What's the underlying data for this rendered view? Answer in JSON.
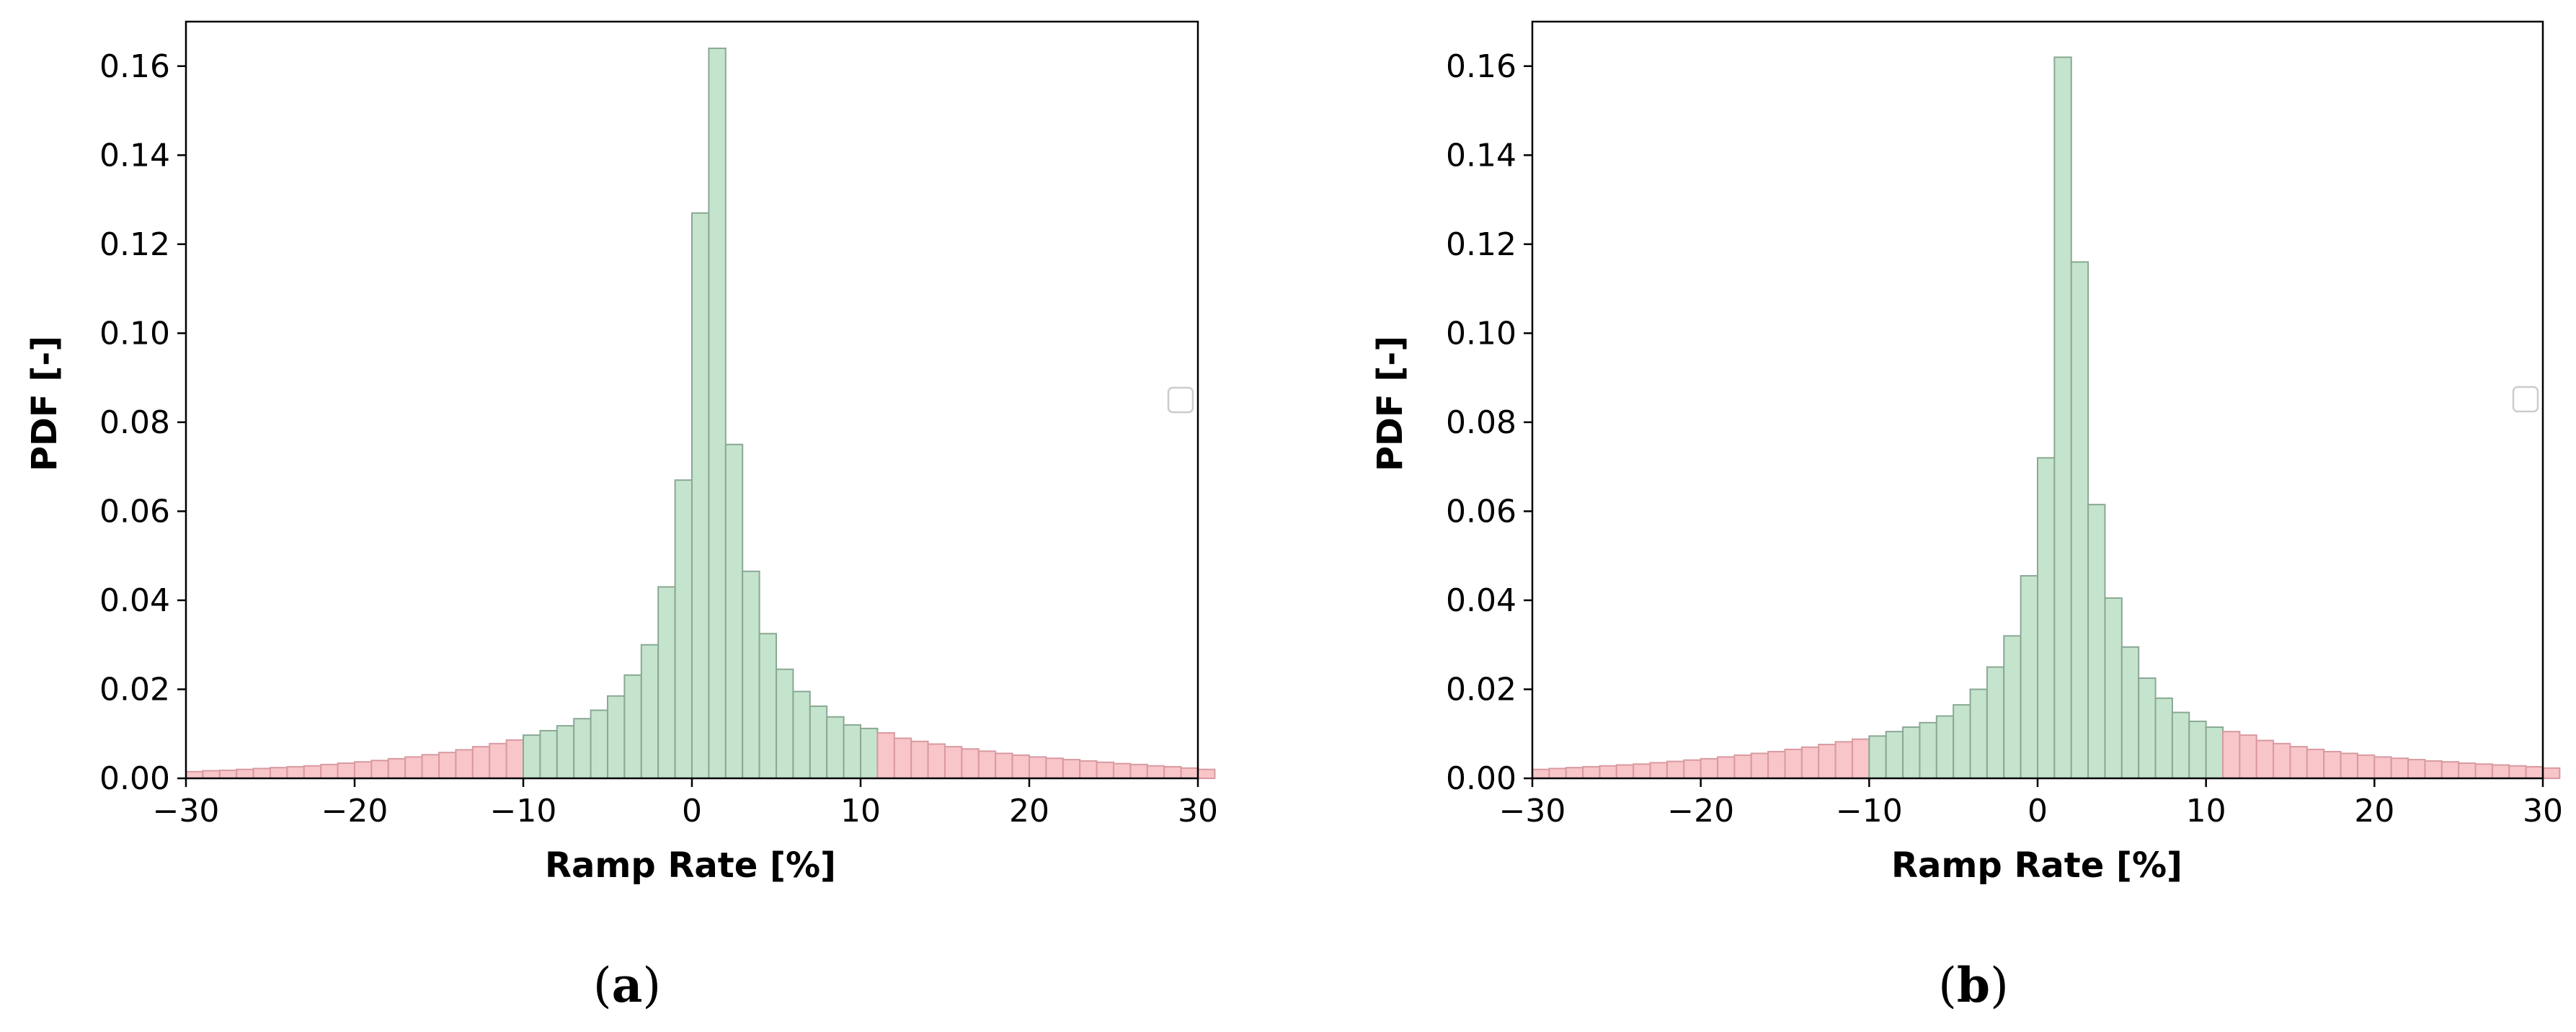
{
  "chart_data": [
    {
      "type": "bar",
      "panel_label": "a",
      "xlabel": "Ramp Rate [%]",
      "ylabel": "PDF [-]",
      "xlim": [
        -30,
        30
      ],
      "ylim": [
        0,
        0.17
      ],
      "xticks": [
        -30,
        -20,
        -10,
        0,
        10,
        20,
        30
      ],
      "yticks": [
        0.0,
        0.02,
        0.04,
        0.06,
        0.08,
        0.1,
        0.12,
        0.14,
        0.16
      ],
      "bin_width": 1,
      "bin_start": -30,
      "threshold_range": [
        -10,
        11
      ],
      "values": [
        0.0015,
        0.0017,
        0.0018,
        0.002,
        0.0022,
        0.0024,
        0.0026,
        0.0028,
        0.0031,
        0.0034,
        0.0037,
        0.004,
        0.0044,
        0.0048,
        0.0053,
        0.0058,
        0.0064,
        0.0071,
        0.0078,
        0.0086,
        0.0097,
        0.0107,
        0.0118,
        0.0134,
        0.0153,
        0.0185,
        0.0232,
        0.03,
        0.043,
        0.067,
        0.127,
        0.164,
        0.075,
        0.0465,
        0.0325,
        0.0245,
        0.0195,
        0.0162,
        0.0138,
        0.012,
        0.0112,
        0.0102,
        0.009,
        0.0083,
        0.0077,
        0.0071,
        0.0066,
        0.0061,
        0.0056,
        0.0052,
        0.0048,
        0.0045,
        0.0042,
        0.0039,
        0.0036,
        0.0033,
        0.0031,
        0.0028,
        0.0026,
        0.0023,
        0.002
      ],
      "legend": "center-right, empty"
    },
    {
      "type": "bar",
      "panel_label": "b",
      "xlabel": "Ramp Rate [%]",
      "ylabel": "PDF [-]",
      "xlim": [
        -30,
        30
      ],
      "ylim": [
        0,
        0.17
      ],
      "xticks": [
        -30,
        -20,
        -10,
        0,
        10,
        20,
        30
      ],
      "yticks": [
        0.0,
        0.02,
        0.04,
        0.06,
        0.08,
        0.1,
        0.12,
        0.14,
        0.16
      ],
      "bin_width": 1,
      "bin_start": -30,
      "threshold_range": [
        -10,
        11
      ],
      "values": [
        0.002,
        0.0022,
        0.0024,
        0.0026,
        0.0028,
        0.003,
        0.0032,
        0.0035,
        0.0038,
        0.0041,
        0.0044,
        0.0048,
        0.0052,
        0.0056,
        0.006,
        0.0065,
        0.007,
        0.0076,
        0.0082,
        0.0088,
        0.0095,
        0.0105,
        0.0115,
        0.0125,
        0.014,
        0.0165,
        0.02,
        0.025,
        0.032,
        0.0455,
        0.072,
        0.162,
        0.116,
        0.0615,
        0.0405,
        0.0295,
        0.0225,
        0.018,
        0.0148,
        0.0128,
        0.0115,
        0.0105,
        0.0097,
        0.0085,
        0.0078,
        0.0071,
        0.0065,
        0.006,
        0.0056,
        0.0052,
        0.0048,
        0.0045,
        0.0042,
        0.0039,
        0.0037,
        0.0034,
        0.0032,
        0.003,
        0.0028,
        0.0026,
        0.0023
      ],
      "legend": "center-right, empty"
    }
  ],
  "colors": {
    "inside": "#c5e4cd",
    "inside_edge": "#8aa894",
    "outside": "#f8c5c8",
    "outside_edge": "#d89aa0",
    "axis": "#000000"
  }
}
